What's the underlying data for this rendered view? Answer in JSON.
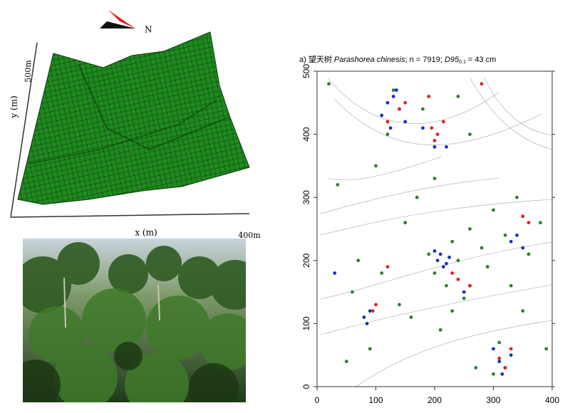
{
  "terrain": {
    "north_label": "N",
    "y_max_label": "500m",
    "y_label": "y (m)",
    "x_label": "x (m)",
    "x_max_label": "400m"
  },
  "chart_data": {
    "type": "scatter",
    "title": [
      "a) 望天树 ",
      "Parashorea chinesis",
      "; n = 7919; ",
      "D95",
      "0.1",
      " = 43 cm"
    ],
    "xlim": [
      0,
      400
    ],
    "ylim": [
      0,
      500
    ],
    "xticks": [
      0,
      100,
      200,
      300,
      400
    ],
    "yticks": [
      0,
      100,
      200,
      300,
      400,
      500
    ],
    "series": [
      {
        "color": "#2e7d32",
        "x": [
          20,
          35,
          60,
          90,
          100,
          120,
          140,
          150,
          170,
          190,
          200,
          210,
          220,
          230,
          240,
          250,
          260,
          270,
          280,
          290,
          300,
          310,
          320,
          330,
          340,
          360,
          380,
          390,
          50,
          70,
          110,
          160,
          180,
          200,
          230,
          260,
          300,
          350,
          130,
          240
        ],
        "values": [
          480,
          320,
          150,
          60,
          350,
          400,
          130,
          260,
          300,
          210,
          180,
          90,
          160,
          120,
          200,
          140,
          250,
          30,
          220,
          190,
          280,
          70,
          240,
          160,
          300,
          210,
          260,
          60,
          40,
          200,
          180,
          110,
          440,
          330,
          230,
          400,
          20,
          120,
          470,
          460
        ]
      },
      {
        "color": "#1a2fc0",
        "x": [
          110,
          120,
          130,
          140,
          150,
          125,
          135,
          205,
          210,
          215,
          220,
          200,
          225,
          310,
          320,
          330,
          300,
          315,
          80,
          90,
          85,
          330,
          340,
          350,
          250,
          260,
          30,
          200,
          180,
          220
        ],
        "values": [
          430,
          450,
          460,
          440,
          420,
          410,
          470,
          200,
          210,
          190,
          195,
          215,
          205,
          40,
          30,
          50,
          60,
          20,
          110,
          120,
          100,
          230,
          240,
          220,
          150,
          160,
          180,
          380,
          410,
          380
        ]
      },
      {
        "color": "#e02020",
        "x": [
          140,
          150,
          120,
          195,
          205,
          200,
          215,
          320,
          310,
          330,
          95,
          100,
          230,
          240,
          350,
          360,
          260,
          280,
          190,
          120
        ],
        "values": [
          440,
          450,
          420,
          410,
          400,
          390,
          420,
          30,
          45,
          60,
          120,
          130,
          180,
          170,
          270,
          260,
          160,
          480,
          460,
          190
        ]
      }
    ]
  }
}
